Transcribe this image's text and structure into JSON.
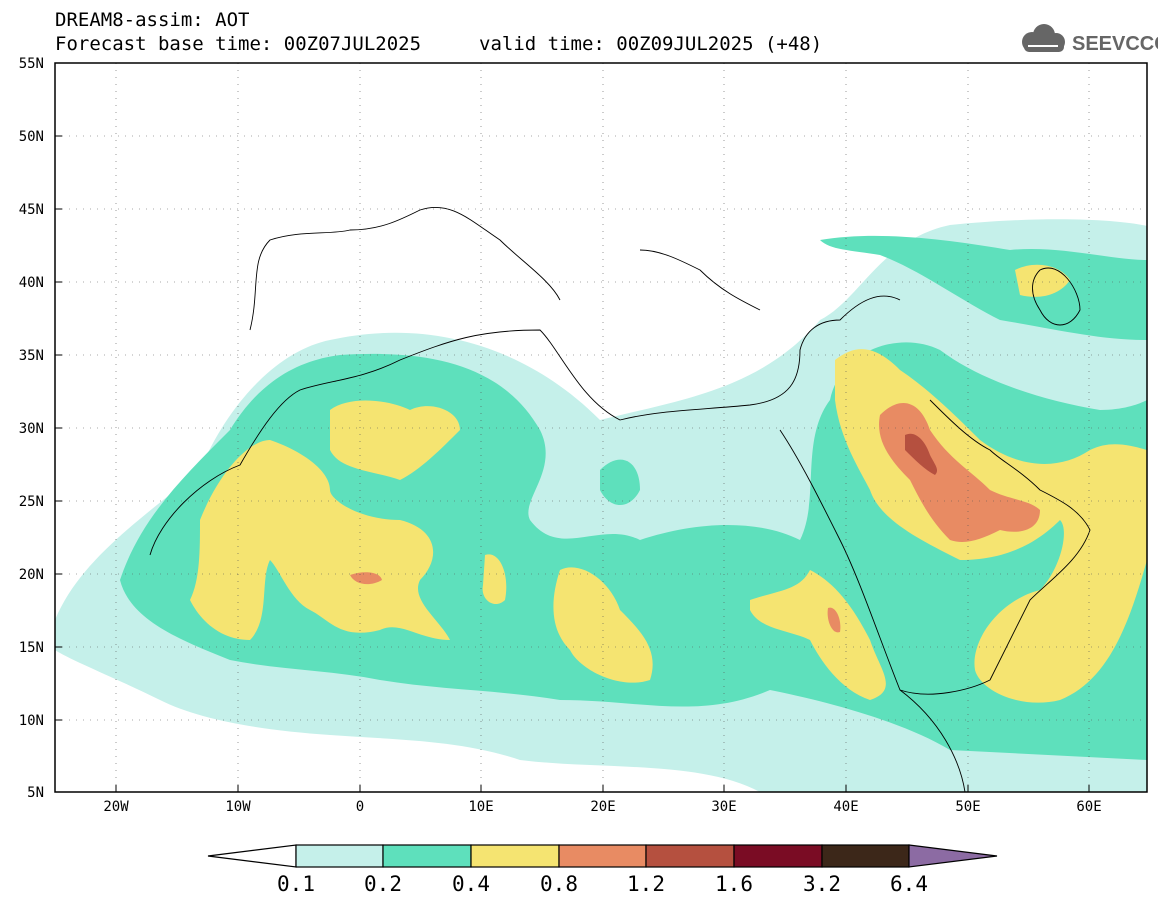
{
  "header": {
    "title_line1": "DREAM8-assim: AOT",
    "base_time": "Forecast base time: 00Z07JUL2025",
    "valid_time": "valid time: 00Z09JUL2025 (+48)"
  },
  "logo": {
    "text": "SEEVCCC",
    "color": "#666666"
  },
  "axes": {
    "lat_labels": [
      "55N",
      "50N",
      "45N",
      "40N",
      "35N",
      "30N",
      "25N",
      "20N",
      "15N",
      "10N",
      "5N"
    ],
    "lon_labels": [
      "20W",
      "10W",
      "0",
      "10E",
      "20E",
      "30E",
      "40E",
      "50E",
      "60E"
    ]
  },
  "colorbar": {
    "labels": [
      "0.1",
      "0.2",
      "0.4",
      "0.8",
      "1.2",
      "1.6",
      "3.2",
      "6.4"
    ],
    "colors": [
      "#ffffff",
      "#c5f0ea",
      "#5ee0bc",
      "#f5e471",
      "#e88b63",
      "#b5503f",
      "#7a0c24",
      "#3c2719",
      "#8c6ba3"
    ]
  },
  "legend_colors": {
    "c1": "#c5f0ea",
    "c2": "#5ee0bc",
    "c3": "#f5e471",
    "c4": "#e88b63",
    "c5": "#b5503f"
  }
}
